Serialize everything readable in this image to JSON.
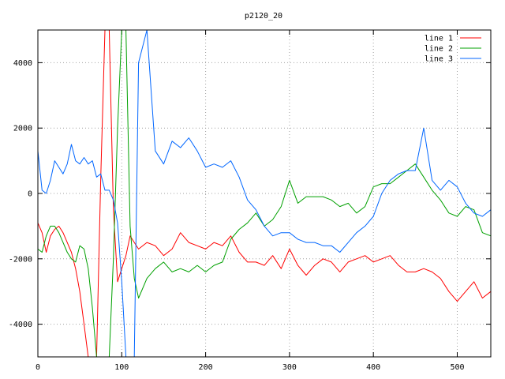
{
  "chart_data": {
    "type": "line",
    "title": "p2120_20",
    "xlabel": "",
    "ylabel": "",
    "xlim": [
      0,
      540
    ],
    "ylim": [
      -5000,
      5000
    ],
    "x_ticks": [
      0,
      100,
      200,
      300,
      400,
      500
    ],
    "y_ticks": [
      -4000,
      -2000,
      0,
      2000,
      4000
    ],
    "grid": true,
    "legend_position": "top-right",
    "series": [
      {
        "name": "line 1",
        "color": "#ff0000",
        "x": [
          0,
          5,
          10,
          15,
          20,
          25,
          30,
          35,
          40,
          45,
          50,
          55,
          60,
          65,
          70,
          75,
          80,
          85,
          90,
          95,
          100,
          105,
          110,
          115,
          120,
          130,
          140,
          150,
          160,
          170,
          180,
          190,
          200,
          210,
          220,
          230,
          240,
          250,
          260,
          270,
          280,
          290,
          300,
          310,
          320,
          330,
          340,
          350,
          360,
          370,
          380,
          390,
          400,
          410,
          420,
          430,
          440,
          450,
          460,
          470,
          480,
          490,
          500,
          510,
          520,
          530,
          540
        ],
        "y": [
          -900,
          -1200,
          -1800,
          -1300,
          -1100,
          -1000,
          -1200,
          -1500,
          -1800,
          -2300,
          -3000,
          -4000,
          -5000,
          -5000,
          -5000,
          500,
          5000,
          5000,
          -500,
          -2700,
          -2300,
          -1900,
          -1300,
          -1500,
          -1700,
          -1500,
          -1600,
          -1900,
          -1700,
          -1200,
          -1500,
          -1600,
          -1700,
          -1500,
          -1600,
          -1300,
          -1800,
          -2100,
          -2100,
          -2200,
          -1900,
          -2300,
          -1700,
          -2200,
          -2500,
          -2200,
          -2000,
          -2100,
          -2400,
          -2100,
          -2000,
          -1900,
          -2100,
          -2000,
          -1900,
          -2200,
          -2400,
          -2400,
          -2300,
          -2400,
          -2600,
          -3000,
          -3300,
          -3000,
          -2700,
          -3200,
          -3000
        ]
      },
      {
        "name": "line 2",
        "color": "#00a000",
        "x": [
          0,
          5,
          10,
          15,
          20,
          25,
          30,
          35,
          40,
          45,
          50,
          55,
          60,
          65,
          70,
          75,
          80,
          85,
          90,
          95,
          100,
          105,
          110,
          115,
          120,
          130,
          140,
          150,
          160,
          170,
          180,
          190,
          200,
          210,
          220,
          230,
          240,
          250,
          260,
          270,
          280,
          290,
          300,
          310,
          320,
          330,
          340,
          350,
          360,
          370,
          380,
          390,
          400,
          410,
          420,
          430,
          440,
          450,
          460,
          470,
          480,
          490,
          500,
          510,
          520,
          530,
          540
        ],
        "y": [
          -1700,
          -1800,
          -1300,
          -1000,
          -1000,
          -1200,
          -1500,
          -1800,
          -2000,
          -2100,
          -1600,
          -1700,
          -2300,
          -3500,
          -5000,
          -5000,
          -5000,
          -5000,
          -2000,
          2000,
          5000,
          5000,
          -1000,
          -2600,
          -3200,
          -2600,
          -2300,
          -2100,
          -2400,
          -2300,
          -2400,
          -2200,
          -2400,
          -2200,
          -2100,
          -1400,
          -1100,
          -900,
          -600,
          -1000,
          -800,
          -400,
          400,
          -300,
          -100,
          -100,
          -100,
          -200,
          -400,
          -300,
          -600,
          -400,
          200,
          300,
          300,
          500,
          700,
          900,
          500,
          100,
          -200,
          -600,
          -700,
          -400,
          -500,
          -1200,
          -1300
        ]
      },
      {
        "name": "line 3",
        "color": "#0066ff",
        "x": [
          0,
          5,
          10,
          15,
          20,
          25,
          30,
          35,
          40,
          45,
          50,
          55,
          60,
          65,
          70,
          75,
          80,
          85,
          90,
          95,
          100,
          105,
          110,
          115,
          120,
          130,
          140,
          150,
          160,
          170,
          180,
          190,
          200,
          210,
          220,
          230,
          240,
          250,
          260,
          270,
          280,
          290,
          300,
          310,
          320,
          330,
          340,
          350,
          360,
          370,
          380,
          390,
          400,
          410,
          420,
          430,
          440,
          450,
          460,
          470,
          480,
          490,
          500,
          510,
          520,
          530,
          540
        ],
        "y": [
          1300,
          100,
          0,
          400,
          1000,
          800,
          600,
          900,
          1500,
          1000,
          900,
          1100,
          900,
          1000,
          500,
          600,
          100,
          100,
          -200,
          -900,
          -2700,
          -5000,
          -5000,
          -5000,
          4000,
          5000,
          1300,
          900,
          1600,
          1400,
          1700,
          1300,
          800,
          900,
          800,
          1000,
          500,
          -200,
          -500,
          -1000,
          -1300,
          -1200,
          -1200,
          -1400,
          -1500,
          -1500,
          -1600,
          -1600,
          -1800,
          -1500,
          -1200,
          -1000,
          -700,
          0,
          400,
          600,
          700,
          700,
          2000,
          400,
          100,
          400,
          200,
          -300,
          -600,
          -700,
          -500
        ]
      }
    ]
  }
}
